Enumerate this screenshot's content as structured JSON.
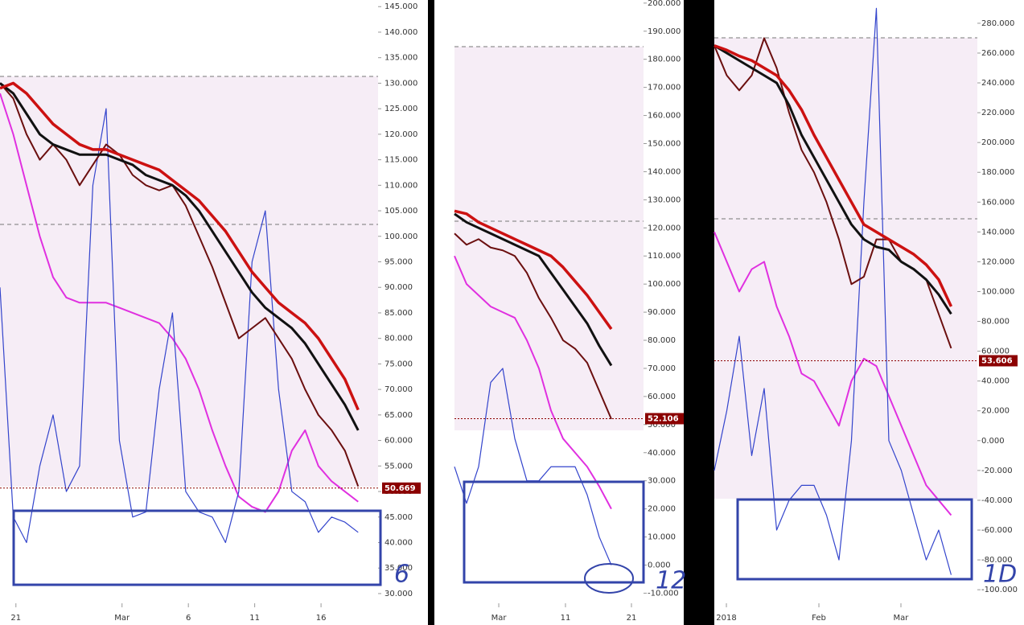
{
  "chart_data": [
    {
      "type": "line",
      "annotation": "6",
      "last_price": 50.669,
      "xlim": [
        0,
        28.5
      ],
      "ylim": [
        28.1,
        146.3
      ],
      "x": [
        0,
        1,
        2,
        3,
        4,
        5,
        6,
        7,
        8,
        9,
        10,
        11,
        12,
        13,
        14,
        15,
        16,
        17,
        18,
        19,
        20,
        21,
        22,
        23,
        24,
        25,
        26,
        27
      ],
      "xticks": [
        {
          "value": 1.2,
          "label": "21"
        },
        {
          "value": 9.2,
          "label": "Mar"
        },
        {
          "value": 14.2,
          "label": "6"
        },
        {
          "value": 19.2,
          "label": "11"
        },
        {
          "value": 24.2,
          "label": "16"
        }
      ],
      "yticks": [
        {
          "value": 30,
          "label": "30.000"
        },
        {
          "value": 35,
          "label": "35.000"
        },
        {
          "value": 40,
          "label": "40.000"
        },
        {
          "value": 45,
          "label": "45.000"
        },
        {
          "value": 50,
          "label": "50.000"
        },
        {
          "value": 55,
          "label": "55.000"
        },
        {
          "value": 60,
          "label": "60.000"
        },
        {
          "value": 65,
          "label": "65.000"
        },
        {
          "value": 70,
          "label": "70.000"
        },
        {
          "value": 75,
          "label": "75.000"
        },
        {
          "value": 80,
          "label": "80.000"
        },
        {
          "value": 85,
          "label": "85.000"
        },
        {
          "value": 90,
          "label": "90.000"
        },
        {
          "value": 95,
          "label": "95.000"
        },
        {
          "value": 100,
          "label": "100.000"
        },
        {
          "value": 105,
          "label": "105.000"
        },
        {
          "value": 110,
          "label": "110.000"
        },
        {
          "value": 115,
          "label": "115.000"
        },
        {
          "value": 120,
          "label": "120.000"
        },
        {
          "value": 125,
          "label": "125.000"
        },
        {
          "value": 130,
          "label": "130.000"
        },
        {
          "value": 135,
          "label": "135.000"
        },
        {
          "value": 140,
          "label": "140.000"
        },
        {
          "value": 145,
          "label": "145.000"
        }
      ],
      "series": [
        {
          "color": "#e030e0",
          "values": [
            128,
            120,
            110,
            100,
            92,
            88,
            87,
            87,
            87,
            86,
            85,
            84,
            83,
            80,
            76,
            70,
            62,
            55,
            49,
            47,
            46,
            50,
            58,
            62,
            55,
            52,
            50,
            48
          ]
        },
        {
          "color": "#3344cc",
          "values": [
            90,
            45,
            40,
            55,
            65,
            50,
            55,
            110,
            125,
            60,
            45,
            46,
            70,
            85,
            50,
            46,
            45,
            40,
            50,
            95,
            105,
            70,
            50,
            48,
            42,
            45,
            44,
            42
          ]
        },
        {
          "color": "#6b0f0f",
          "values": [
            130,
            127,
            120,
            115,
            118,
            115,
            110,
            114,
            118,
            116,
            112,
            110,
            109,
            110,
            106,
            100,
            94,
            87,
            80,
            82,
            84,
            80,
            76,
            70,
            65,
            62,
            58,
            51
          ]
        },
        {
          "color": "#111111",
          "values": [
            130,
            128,
            124,
            120,
            118,
            117,
            116,
            116,
            116,
            115,
            114,
            112,
            111,
            110,
            108,
            105,
            101,
            97,
            93,
            89,
            86,
            84,
            82,
            79,
            75,
            71,
            67,
            62
          ]
        },
        {
          "color": "#cc1111",
          "values": [
            129,
            130,
            128,
            125,
            122,
            120,
            118,
            117,
            117,
            116,
            115,
            114,
            113,
            111,
            109,
            107,
            104,
            101,
            97,
            93,
            90,
            87,
            85,
            83,
            80,
            76,
            72,
            66
          ]
        }
      ]
    },
    {
      "type": "line",
      "annotation": "12",
      "last_price": 52.106,
      "xlim": [
        0,
        15.67
      ],
      "ylim": [
        -13.6,
        201.1
      ],
      "x": [
        0,
        1,
        2,
        3,
        4,
        5,
        6,
        7,
        8,
        9,
        10,
        11,
        12,
        13
      ],
      "xticks": [
        {
          "value": 3.67,
          "label": "Mar"
        },
        {
          "value": 9.2,
          "label": "11"
        },
        {
          "value": 14.67,
          "label": "21"
        }
      ],
      "yticks": [
        {
          "value": -10,
          "label": "-10.000"
        },
        {
          "value": 0,
          "label": "0.000"
        },
        {
          "value": 10,
          "label": "10.000"
        },
        {
          "value": 20,
          "label": "20.000"
        },
        {
          "value": 30,
          "label": "30.000"
        },
        {
          "value": 40,
          "label": "40.000"
        },
        {
          "value": 50,
          "label": "50.000"
        },
        {
          "value": 60,
          "label": "60.000"
        },
        {
          "value": 70,
          "label": "70.000"
        },
        {
          "value": 80,
          "label": "80.000"
        },
        {
          "value": 90,
          "label": "90.000"
        },
        {
          "value": 100,
          "label": "100.000"
        },
        {
          "value": 110,
          "label": "110.000"
        },
        {
          "value": 120,
          "label": "120.000"
        },
        {
          "value": 130,
          "label": "130.000"
        },
        {
          "value": 140,
          "label": "140.000"
        },
        {
          "value": 150,
          "label": "150.000"
        },
        {
          "value": 160,
          "label": "160.000"
        },
        {
          "value": 170,
          "label": "170.000"
        },
        {
          "value": 180,
          "label": "180.000"
        },
        {
          "value": 190,
          "label": "190.000"
        },
        {
          "value": 200,
          "label": "200.000"
        }
      ],
      "series": [
        {
          "color": "#e030e0",
          "values": [
            110,
            100,
            96,
            92,
            90,
            88,
            80,
            70,
            55,
            45,
            40,
            35,
            28,
            20
          ]
        },
        {
          "color": "#3344cc",
          "values": [
            35,
            22,
            35,
            65,
            70,
            45,
            30,
            30,
            35,
            35,
            35,
            25,
            10,
            0
          ]
        },
        {
          "color": "#6b0f0f",
          "values": [
            118,
            114,
            116,
            113,
            112,
            110,
            104,
            95,
            88,
            80,
            77,
            72,
            62,
            52
          ]
        },
        {
          "color": "#111111",
          "values": [
            125,
            122,
            120,
            118,
            116,
            114,
            112,
            110,
            104,
            98,
            92,
            86,
            78,
            71
          ]
        },
        {
          "color": "#cc1111",
          "values": [
            126,
            125,
            122,
            120,
            118,
            116,
            114,
            112,
            110,
            106,
            101,
            96,
            90,
            84
          ]
        }
      ]
    },
    {
      "type": "line",
      "annotation": "1D",
      "last_price": 53.606,
      "xlim": [
        0,
        21.1
      ],
      "ylim": [
        -109.1,
        295.6
      ],
      "x": [
        0,
        1,
        2,
        3,
        4,
        5,
        6,
        7,
        8,
        9,
        10,
        11,
        12,
        13,
        14,
        15,
        16,
        17,
        18,
        19
      ],
      "xticks": [
        {
          "value": 0.97,
          "label": "2018"
        },
        {
          "value": 8.39,
          "label": "Feb"
        },
        {
          "value": 14.97,
          "label": "Mar"
        }
      ],
      "yticks": [
        {
          "value": -100,
          "label": "-100.000"
        },
        {
          "value": -80,
          "label": "-80.000"
        },
        {
          "value": -60,
          "label": "-60.000"
        },
        {
          "value": -40,
          "label": "-40.000"
        },
        {
          "value": -20,
          "label": "-20.000"
        },
        {
          "value": 0,
          "label": "0.000"
        },
        {
          "value": 20,
          "label": "20.000"
        },
        {
          "value": 40,
          "label": "40.000"
        },
        {
          "value": 60,
          "label": "60.000"
        },
        {
          "value": 80,
          "label": "80.000"
        },
        {
          "value": 100,
          "label": "100.000"
        },
        {
          "value": 120,
          "label": "120.000"
        },
        {
          "value": 140,
          "label": "140.000"
        },
        {
          "value": 160,
          "label": "160.000"
        },
        {
          "value": 180,
          "label": "180.000"
        },
        {
          "value": 200,
          "label": "200.000"
        },
        {
          "value": 220,
          "label": "220.000"
        },
        {
          "value": 240,
          "label": "240.000"
        },
        {
          "value": 260,
          "label": "260.000"
        },
        {
          "value": 280,
          "label": "280.000"
        }
      ],
      "series": [
        {
          "color": "#e030e0",
          "values": [
            140,
            120,
            100,
            115,
            120,
            90,
            70,
            45,
            40,
            25,
            10,
            40,
            55,
            50,
            30,
            10,
            -10,
            -30,
            -40,
            -50
          ]
        },
        {
          "color": "#3344cc",
          "values": [
            -20,
            20,
            70,
            -10,
            35,
            -60,
            -40,
            -30,
            -30,
            -50,
            -80,
            0,
            160,
            290,
            0,
            -20,
            -50,
            -80,
            -60,
            -90
          ]
        },
        {
          "color": "#6b0f0f",
          "values": [
            265,
            245,
            235,
            245,
            270,
            250,
            220,
            195,
            180,
            160,
            135,
            105,
            110,
            135,
            135,
            120,
            115,
            108,
            85,
            62
          ]
        },
        {
          "color": "#111111",
          "values": [
            265,
            260,
            255,
            250,
            245,
            240,
            225,
            205,
            190,
            175,
            160,
            145,
            135,
            130,
            128,
            120,
            115,
            108,
            98,
            85
          ]
        },
        {
          "color": "#cc1111",
          "values": [
            265,
            262,
            258,
            255,
            250,
            245,
            235,
            222,
            205,
            190,
            175,
            160,
            145,
            140,
            135,
            130,
            125,
            118,
            108,
            90
          ]
        }
      ]
    }
  ]
}
